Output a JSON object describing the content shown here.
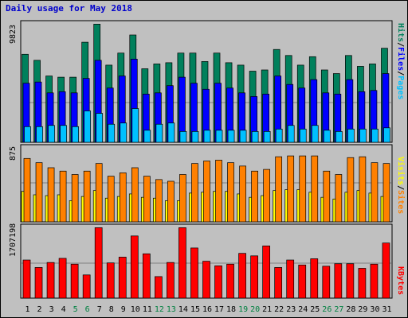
{
  "title": "Daily usage for May 2018",
  "colors": {
    "hits": "#00805c",
    "files": "#0000ff",
    "pages": "#00c0ff",
    "visits": "#ffff00",
    "sites": "#ff8000",
    "kbytes": "#ff0000",
    "weekend": "#008040",
    "day": "#000000",
    "background": "#c0c0c0"
  },
  "chart_data": [
    {
      "type": "bar",
      "panel": "hits_files_pages",
      "ymax_label": "9823",
      "ylim": [
        0,
        9823
      ],
      "x": [
        1,
        2,
        3,
        4,
        5,
        6,
        7,
        8,
        9,
        10,
        11,
        12,
        13,
        14,
        15,
        16,
        17,
        18,
        19,
        20,
        21,
        22,
        23,
        24,
        25,
        26,
        27,
        28,
        29,
        30,
        31
      ],
      "weekend_days": [
        5,
        6,
        12,
        13,
        19,
        20,
        26,
        27
      ],
      "legend": {
        "pages": "Pages",
        "files": "Files",
        "hits": "Hits",
        "sep": "/"
      },
      "series": [
        {
          "name": "Hits",
          "values": [
            7300,
            6800,
            5500,
            5400,
            5400,
            8300,
            9800,
            6400,
            7400,
            8900,
            6100,
            6500,
            6600,
            7400,
            7400,
            6700,
            7400,
            6600,
            6400,
            5900,
            6000,
            7700,
            7200,
            6400,
            7100,
            6000,
            5700,
            7200,
            6300,
            6500,
            7800
          ]
        },
        {
          "name": "Files",
          "values": [
            4900,
            5000,
            4100,
            4200,
            4100,
            5300,
            6800,
            4500,
            5500,
            6900,
            4000,
            4100,
            4700,
            5400,
            4900,
            4400,
            4900,
            4500,
            4100,
            3800,
            4000,
            5500,
            4800,
            4500,
            5200,
            4100,
            4000,
            5200,
            4200,
            4300,
            5700
          ]
        },
        {
          "name": "Pages",
          "values": [
            1300,
            1300,
            1400,
            1400,
            1300,
            2600,
            2400,
            1500,
            1600,
            2800,
            1000,
            1500,
            1600,
            900,
            900,
            1000,
            1000,
            1000,
            1000,
            900,
            900,
            1100,
            1400,
            1100,
            1400,
            1000,
            900,
            1100,
            1100,
            1100,
            1200
          ]
        }
      ]
    },
    {
      "type": "bar",
      "panel": "visits_sites",
      "ymax_label": "875",
      "ylim": [
        0,
        875
      ],
      "x": [
        1,
        2,
        3,
        4,
        5,
        6,
        7,
        8,
        9,
        10,
        11,
        12,
        13,
        14,
        15,
        16,
        17,
        18,
        19,
        20,
        21,
        22,
        23,
        24,
        25,
        26,
        27,
        28,
        29,
        30,
        31
      ],
      "legend": {
        "sites": "Sites",
        "visits": "Visits",
        "sep": "/"
      },
      "series": [
        {
          "name": "Sites",
          "values": [
            750,
            700,
            640,
            600,
            560,
            600,
            690,
            540,
            580,
            640,
            540,
            500,
            480,
            560,
            690,
            720,
            730,
            700,
            660,
            600,
            620,
            770,
            780,
            780,
            780,
            600,
            560,
            760,
            770,
            700,
            690
          ]
        },
        {
          "name": "Visits",
          "values": [
            360,
            320,
            310,
            320,
            250,
            300,
            370,
            280,
            300,
            330,
            290,
            280,
            250,
            250,
            340,
            350,
            360,
            360,
            330,
            290,
            310,
            370,
            380,
            380,
            350,
            290,
            270,
            350,
            370,
            340,
            300
          ]
        }
      ]
    },
    {
      "type": "bar",
      "panel": "kbytes",
      "ymax_label": "1707198",
      "ylim": [
        0,
        1707198
      ],
      "x": [
        1,
        2,
        3,
        4,
        5,
        6,
        7,
        8,
        9,
        10,
        11,
        12,
        13,
        14,
        15,
        16,
        17,
        18,
        19,
        20,
        21,
        22,
        23,
        24,
        25,
        26,
        27,
        28,
        29,
        30,
        31
      ],
      "legend": {
        "kbytes": "KBytes"
      },
      "series": [
        {
          "name": "KBytes",
          "values": [
            920000,
            740000,
            860000,
            960000,
            820000,
            560000,
            1700000,
            850000,
            990000,
            1500000,
            1070000,
            520000,
            860000,
            1700000,
            1210000,
            890000,
            780000,
            820000,
            1080000,
            1020000,
            1260000,
            740000,
            920000,
            800000,
            950000,
            770000,
            830000,
            830000,
            720000,
            820000,
            1330000
          ]
        }
      ]
    }
  ]
}
